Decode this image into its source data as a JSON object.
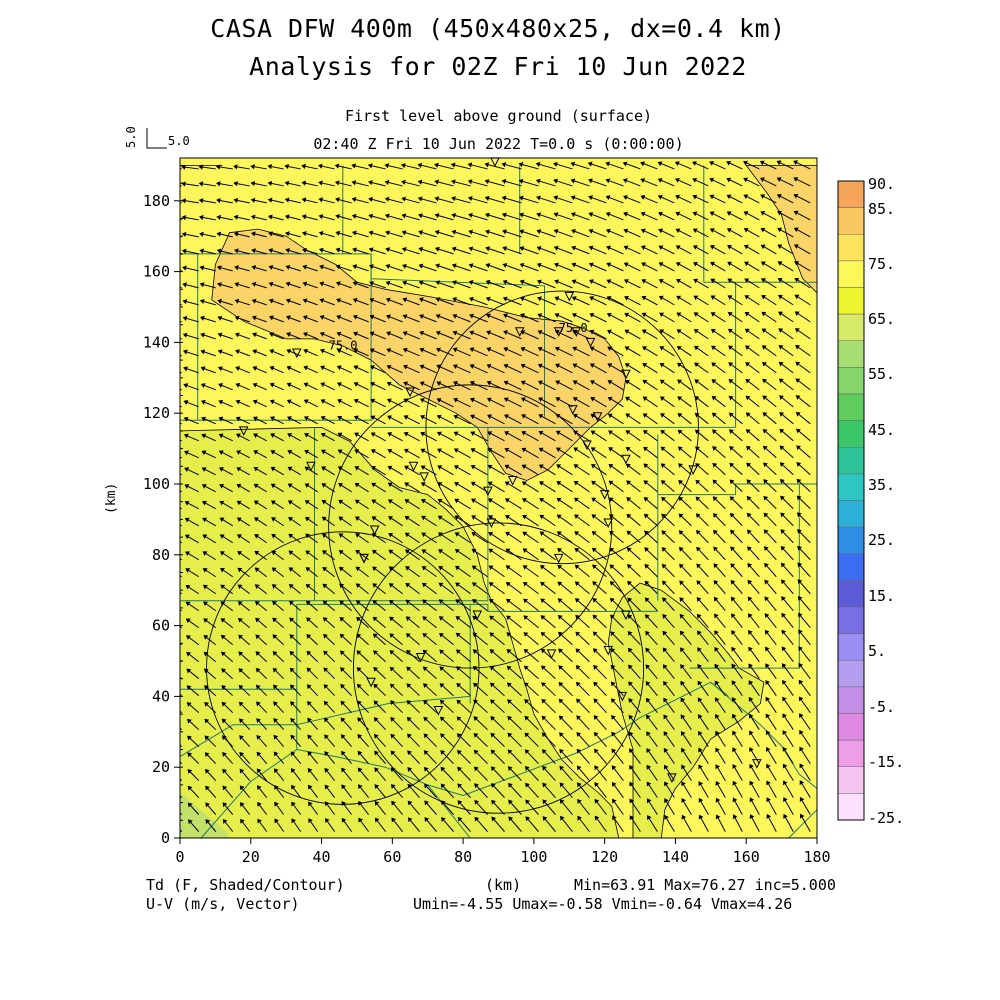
{
  "header": {
    "title_line1": "CASA DFW 400m (450x480x25, dx=0.4 km)",
    "title_line2": "Analysis for 02Z Fri 10 Jun 2022",
    "subtitle_level": "First level above ground (surface)",
    "subtitle_time": "02:40 Z Fri 10 Jun 2022    T=0.0 s (0:00:00)",
    "ref_vector_h": "5.0",
    "ref_vector_v": "5.0"
  },
  "footer": {
    "left_line1": "Td (F, Shaded/Contour)",
    "left_line2": "U-V (m/s, Vector)",
    "x_unit": "(km)",
    "right_line1": "Min=63.91 Max=76.27 inc=5.000",
    "right_line2": "Umin=-4.55 Umax=-0.58 Vmin=-0.64 Vmax=4.26"
  },
  "chart_data": {
    "type": "heatmap",
    "title": "CASA DFW 400m (450x480x25, dx=0.4 km)",
    "subtitle": "Analysis for 02Z Fri 10 Jun 2022",
    "xlabel": "(km)",
    "ylabel": "(km)",
    "xlim": [
      0,
      180
    ],
    "ylim": [
      0,
      190
    ],
    "x_ticks": [
      0,
      20,
      40,
      60,
      80,
      100,
      120,
      140,
      160,
      180
    ],
    "y_ticks": [
      0,
      20,
      40,
      60,
      80,
      100,
      120,
      140,
      160,
      180
    ],
    "field": "Td (F, Shaded/Contour)",
    "vector_field": "U-V (m/s, Vector)",
    "min": 63.91,
    "max": 76.27,
    "inc": 5.0,
    "umin": -4.55,
    "umax": -0.58,
    "vmin": -0.64,
    "vmax": 4.26,
    "contour_labels": [
      "75.0",
      "75.0"
    ],
    "colorbar": {
      "labels": [
        "90.",
        "85.",
        "75.",
        "65.",
        "55.",
        "45.",
        "35.",
        "25.",
        "15.",
        "5.",
        "-5.",
        "-15.",
        "-25."
      ],
      "colors": [
        "#f5a55a",
        "#f9c860",
        "#fde25c",
        "#fdf85a",
        "#eef52e",
        "#d8ea6a",
        "#a6de72",
        "#84d56a",
        "#5ecd5e",
        "#3cc66a",
        "#2dc49a",
        "#2dc6c2",
        "#2db0d8",
        "#2e8ee6",
        "#3b6cf2",
        "#5b5bd6",
        "#7a6ee6",
        "#9a8ef2",
        "#b49ef0",
        "#c58ee6",
        "#de8ae2",
        "#ee9ee8",
        "#f6c4f0",
        "#fde0fb"
      ]
    },
    "fill_colors": {
      "high": "#fad466",
      "mid": "#fdf75b",
      "low": "#e5ee4a",
      "lowest": "#c3e069"
    }
  }
}
